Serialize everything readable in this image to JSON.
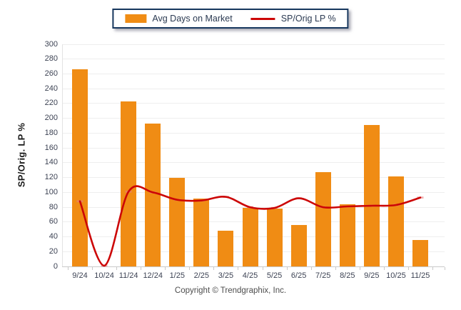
{
  "legend": {
    "bar_label": "Avg Days on Market",
    "line_label": "SP/Orig LP %"
  },
  "y_axis": {
    "title": "SP/Orig. LP %",
    "ticks": [
      0,
      20,
      40,
      60,
      80,
      100,
      120,
      140,
      160,
      180,
      200,
      220,
      240,
      260,
      280,
      300
    ]
  },
  "footer": {
    "copyright": "Copyright © Trendgraphix, Inc."
  },
  "colors": {
    "bar": "#F08C14",
    "line": "#CC0606",
    "line_marker": "#E57F7F",
    "grid": "#EEEEEE",
    "axis": "#C9C9C9",
    "tick_text": "#3D4354",
    "legend_border": "#17375E"
  },
  "chart_data": {
    "type": "bar",
    "title": "",
    "xlabel": "",
    "ylabel": "SP/Orig. LP %",
    "categories": [
      "9/24",
      "10/24",
      "11/24",
      "12/24",
      "1/25",
      "2/25",
      "3/25",
      "4/25",
      "5/25",
      "6/25",
      "7/25",
      "8/25",
      "9/25",
      "10/25",
      "11/25"
    ],
    "series": [
      {
        "name": "Avg Days on Market",
        "type": "bar",
        "color": "#F08C14",
        "values": [
          266,
          0,
          223,
          193,
          120,
          92,
          48,
          79,
          78,
          56,
          127,
          84,
          191,
          122,
          36
        ]
      },
      {
        "name": "SP/Orig LP %",
        "type": "line",
        "color": "#CC0606",
        "values": [
          88,
          1,
          101,
          100,
          90,
          89,
          94,
          80,
          79,
          92,
          80,
          81,
          82,
          83,
          93
        ]
      }
    ],
    "ylim": [
      0,
      300
    ],
    "y_tick_step": 20,
    "grid": "horizontal",
    "legend_position": "top-center"
  }
}
